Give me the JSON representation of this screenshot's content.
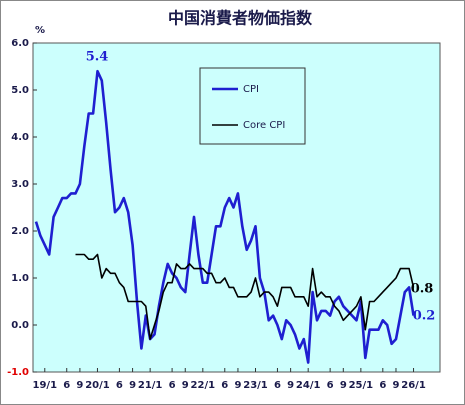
{
  "chart_data": {
    "type": "line",
    "title": "中国消費者物価指数",
    "y_unit": "%",
    "categories": [
      null,
      null,
      "19/1",
      null,
      null,
      null,
      null,
      "6",
      null,
      null,
      "9",
      null,
      null,
      null,
      "20/1",
      null,
      null,
      null,
      null,
      "6",
      null,
      null,
      "9",
      null,
      null,
      null,
      "21/1",
      null,
      null,
      null,
      null,
      "6",
      null,
      null,
      "9",
      null,
      null,
      null,
      "22/1",
      null,
      null,
      null,
      null,
      "6",
      null,
      null,
      "9",
      null,
      null,
      null,
      "23/1",
      null,
      null,
      null,
      null,
      "6",
      null,
      null,
      "9",
      null,
      null,
      null,
      "24/1",
      null,
      null,
      null,
      null,
      "6",
      null,
      null,
      "9",
      null,
      null,
      null,
      "25/1",
      null,
      null,
      null,
      null,
      "6",
      null,
      null,
      "9",
      null,
      null,
      null,
      "26/1"
    ],
    "series": [
      {
        "name": "CPI",
        "color": "#1f1fd0",
        "values": [
          2.2,
          1.9,
          1.7,
          1.5,
          2.3,
          2.5,
          2.7,
          2.7,
          2.8,
          2.8,
          3.0,
          3.8,
          4.5,
          4.5,
          5.4,
          5.2,
          4.3,
          3.3,
          2.4,
          2.5,
          2.7,
          2.4,
          1.7,
          0.5,
          -0.5,
          0.2,
          -0.3,
          -0.2,
          0.4,
          0.9,
          1.3,
          1.1,
          1.0,
          0.8,
          0.7,
          1.5,
          2.3,
          1.5,
          0.9,
          0.9,
          1.5,
          2.1,
          2.1,
          2.5,
          2.7,
          2.5,
          2.8,
          2.1,
          1.6,
          1.8,
          2.1,
          1.0,
          0.7,
          0.1,
          0.2,
          0.0,
          -0.3,
          0.1,
          0.0,
          -0.2,
          -0.5,
          -0.3,
          -0.8,
          0.7,
          0.1,
          0.3,
          0.3,
          0.2,
          0.5,
          0.6,
          0.4,
          0.3,
          0.2,
          0.1,
          0.5,
          -0.7,
          -0.1,
          -0.1,
          -0.1,
          0.1,
          0.0,
          -0.4,
          -0.3,
          0.2,
          0.7,
          0.8,
          0.2
        ]
      },
      {
        "name": "Core CPI",
        "color": "#000000",
        "values": [
          null,
          null,
          null,
          null,
          null,
          null,
          null,
          null,
          null,
          1.5,
          1.5,
          1.5,
          1.4,
          1.4,
          1.5,
          1.0,
          1.2,
          1.1,
          1.1,
          0.9,
          0.8,
          0.5,
          0.5,
          0.5,
          0.5,
          0.4,
          -0.3,
          0.0,
          0.3,
          0.7,
          0.9,
          0.9,
          1.3,
          1.2,
          1.2,
          1.3,
          1.2,
          1.2,
          1.2,
          1.1,
          1.1,
          0.9,
          0.9,
          1.0,
          0.8,
          0.8,
          0.6,
          0.6,
          0.6,
          0.7,
          1.0,
          0.6,
          0.7,
          0.7,
          0.6,
          0.4,
          0.8,
          0.8,
          0.8,
          0.6,
          0.6,
          0.6,
          0.4,
          1.2,
          0.6,
          0.7,
          0.6,
          0.6,
          0.4,
          0.3,
          0.1,
          0.2,
          0.3,
          0.4,
          0.6,
          -0.1,
          0.5,
          0.5,
          0.6,
          0.7,
          0.8,
          0.9,
          1.0,
          1.2,
          1.2,
          1.2,
          0.8
        ]
      }
    ],
    "ylim": [
      -1,
      6
    ],
    "yticks": [
      {
        "value": -1,
        "label": "-1.0"
      },
      {
        "value": 0,
        "label": "0.0"
      },
      {
        "value": 1,
        "label": "1.0"
      },
      {
        "value": 2,
        "label": "2.0"
      },
      {
        "value": 3,
        "label": "3.0"
      },
      {
        "value": 4,
        "label": "4.0"
      },
      {
        "value": 5,
        "label": "5.0"
      },
      {
        "value": 6,
        "label": "6.0"
      }
    ],
    "annotations": [
      "5.4",
      "0.8",
      "0.2"
    ],
    "grid": false
  }
}
